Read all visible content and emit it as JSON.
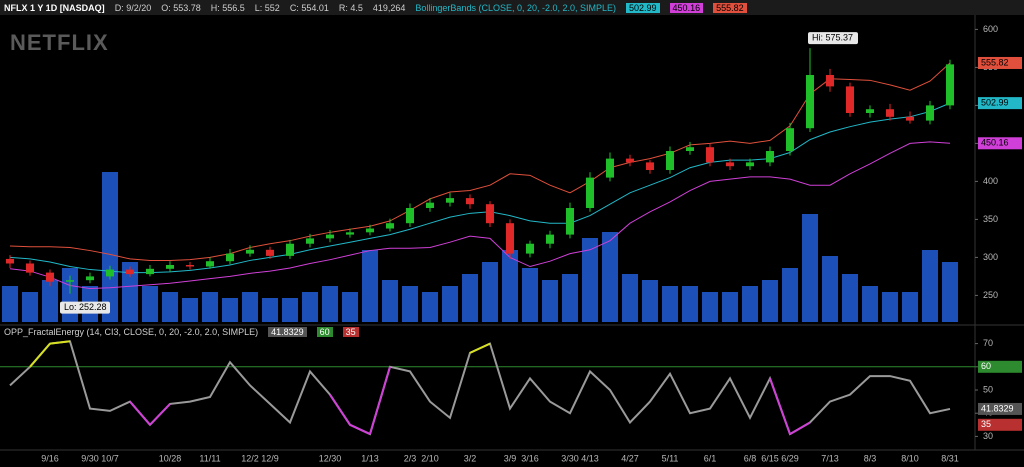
{
  "header": {
    "symbol": "NFLX 1 Y 1D [NASDAQ]",
    "fields": [
      "D: 9/2/20",
      "O: 553.78",
      "H: 556.5",
      "L: 552",
      "C: 554.01",
      "R: 4.5",
      "419,264"
    ],
    "study": "BollingerBands (CLOSE, 0, 20, -2.0, 2.0, SIMPLE)"
  },
  "watermark": "NETFLIX",
  "chart_data": [
    {
      "type": "candlestick",
      "categories": [
        null,
        null,
        "9/16",
        null,
        "9/30",
        "10/7",
        null,
        null,
        "10/28",
        null,
        "11/11",
        null,
        "12/2",
        "12/9",
        null,
        null,
        "12/30",
        null,
        "1/13",
        null,
        "2/3",
        "2/10",
        null,
        "3/2",
        null,
        "3/9",
        "3/16",
        null,
        "3/30",
        "4/13",
        null,
        "4/27",
        null,
        "5/11",
        null,
        "6/1",
        null,
        "6/8",
        "6/15",
        "6/29",
        null,
        "7/13",
        null,
        "8/3",
        null,
        "8/10",
        null,
        "8/31"
      ],
      "open": [
        298,
        292,
        280,
        268,
        270,
        275,
        284,
        278,
        285,
        290,
        288,
        295,
        305,
        310,
        302,
        318,
        325,
        330,
        333,
        338,
        345,
        365,
        372,
        378,
        370,
        345,
        305,
        318,
        330,
        365,
        405,
        430,
        425,
        415,
        440,
        445,
        425,
        420,
        425,
        440,
        470,
        540,
        525,
        490,
        495,
        485,
        480,
        500
      ],
      "high": [
        303,
        296,
        284,
        276,
        280,
        289,
        288,
        290,
        295,
        294,
        300,
        311,
        316,
        314,
        323,
        331,
        336,
        338,
        343,
        351,
        371,
        378,
        385,
        383,
        374,
        350,
        322,
        335,
        372,
        412,
        438,
        435,
        428,
        446,
        452,
        450,
        430,
        430,
        446,
        477,
        575.37,
        548,
        530,
        500,
        502,
        492,
        506,
        560
      ],
      "low": [
        286,
        276,
        262,
        252.28,
        266,
        271,
        274,
        275,
        281,
        284,
        285,
        291,
        301,
        298,
        298,
        313,
        320,
        326,
        329,
        334,
        340,
        360,
        367,
        364,
        340,
        298,
        300,
        312,
        325,
        360,
        400,
        420,
        410,
        410,
        435,
        420,
        415,
        415,
        420,
        434,
        465,
        518,
        485,
        484,
        480,
        476,
        475,
        495
      ],
      "close": [
        292,
        280,
        268,
        270,
        275,
        284,
        278,
        285,
        290,
        288,
        295,
        305,
        310,
        302,
        318,
        325,
        330,
        333,
        338,
        345,
        365,
        372,
        378,
        370,
        345,
        305,
        318,
        330,
        365,
        405,
        430,
        425,
        415,
        440,
        445,
        425,
        420,
        425,
        440,
        470,
        540,
        525,
        490,
        495,
        485,
        480,
        500,
        554
      ],
      "volume": [
        6,
        5,
        7,
        9,
        6,
        25,
        10,
        6,
        5,
        4,
        5,
        4,
        5,
        4,
        4,
        5,
        6,
        5,
        12,
        7,
        6,
        5,
        6,
        8,
        10,
        12,
        9,
        7,
        8,
        14,
        15,
        8,
        7,
        6,
        6,
        5,
        5,
        6,
        7,
        9,
        18,
        11,
        8,
        6,
        5,
        5,
        12,
        10
      ],
      "bands": [
        {
          "color": "#e0503c",
          "values": [
            315,
            314,
            314,
            313,
            309,
            304,
            298,
            296,
            296,
            297,
            300,
            305,
            313,
            318,
            322,
            328,
            333,
            337,
            341,
            348,
            362,
            377,
            386,
            388,
            395,
            410,
            408,
            395,
            385,
            400,
            418,
            425,
            430,
            437,
            448,
            450,
            453,
            450,
            454,
            473,
            515,
            535,
            534,
            533,
            527,
            520,
            532,
            555.82
          ]
        },
        {
          "color": "#22b8c8",
          "values": [
            300,
            298,
            294,
            288,
            284,
            282,
            280,
            280,
            281,
            283,
            286,
            290,
            296,
            300,
            304,
            310,
            315,
            320,
            325,
            330,
            337,
            345,
            353,
            358,
            360,
            355,
            348,
            345,
            345,
            355,
            370,
            385,
            395,
            405,
            418,
            425,
            428,
            428,
            430,
            438,
            455,
            465,
            472,
            478,
            482,
            485,
            492,
            502.99
          ]
        },
        {
          "color": "#d040d8",
          "values": [
            285,
            282,
            274,
            263,
            259,
            260,
            262,
            264,
            266,
            269,
            272,
            275,
            279,
            282,
            286,
            292,
            297,
            303,
            309,
            312,
            312,
            313,
            320,
            328,
            325,
            300,
            288,
            295,
            305,
            310,
            322,
            345,
            360,
            373,
            388,
            400,
            403,
            406,
            406,
            403,
            395,
            395,
            410,
            423,
            437,
            450,
            452,
            450.16
          ]
        }
      ],
      "hi_label": "Hi: 575.37",
      "lo_label": "Lo: 252.28",
      "up_color": "#1fbf2a",
      "down_color": "#e02828",
      "volume_color": "#1d4fb8",
      "ylim": [
        215,
        615
      ],
      "yticks": [
        250,
        300,
        350,
        400,
        450,
        500,
        550,
        600
      ]
    },
    {
      "type": "line",
      "title": "OPP_FractalEnergy (14, CI3, CLOSE, 0, 20, -2.0, 2.0, SIMPLE)",
      "values": [
        52,
        60,
        70,
        71,
        42,
        41,
        45,
        35,
        44,
        45,
        47,
        62,
        52,
        44,
        36,
        58,
        48,
        35,
        31,
        60,
        58,
        45,
        38,
        66,
        70,
        42,
        55,
        45,
        40,
        58,
        50,
        36,
        45,
        57,
        40,
        42,
        55,
        38,
        55,
        31,
        36,
        45,
        48,
        56,
        56,
        54,
        40,
        41.8329
      ],
      "color": "#9a9a9a",
      "above_color": "#d6e020",
      "below_color": "#d040d8",
      "levels": [
        {
          "value": 60,
          "color": "#2e8a2e"
        },
        {
          "value": 35,
          "color": "#b83030"
        }
      ],
      "ylim": [
        25,
        75
      ],
      "yticks": [
        30,
        40,
        50,
        60,
        70
      ]
    }
  ]
}
